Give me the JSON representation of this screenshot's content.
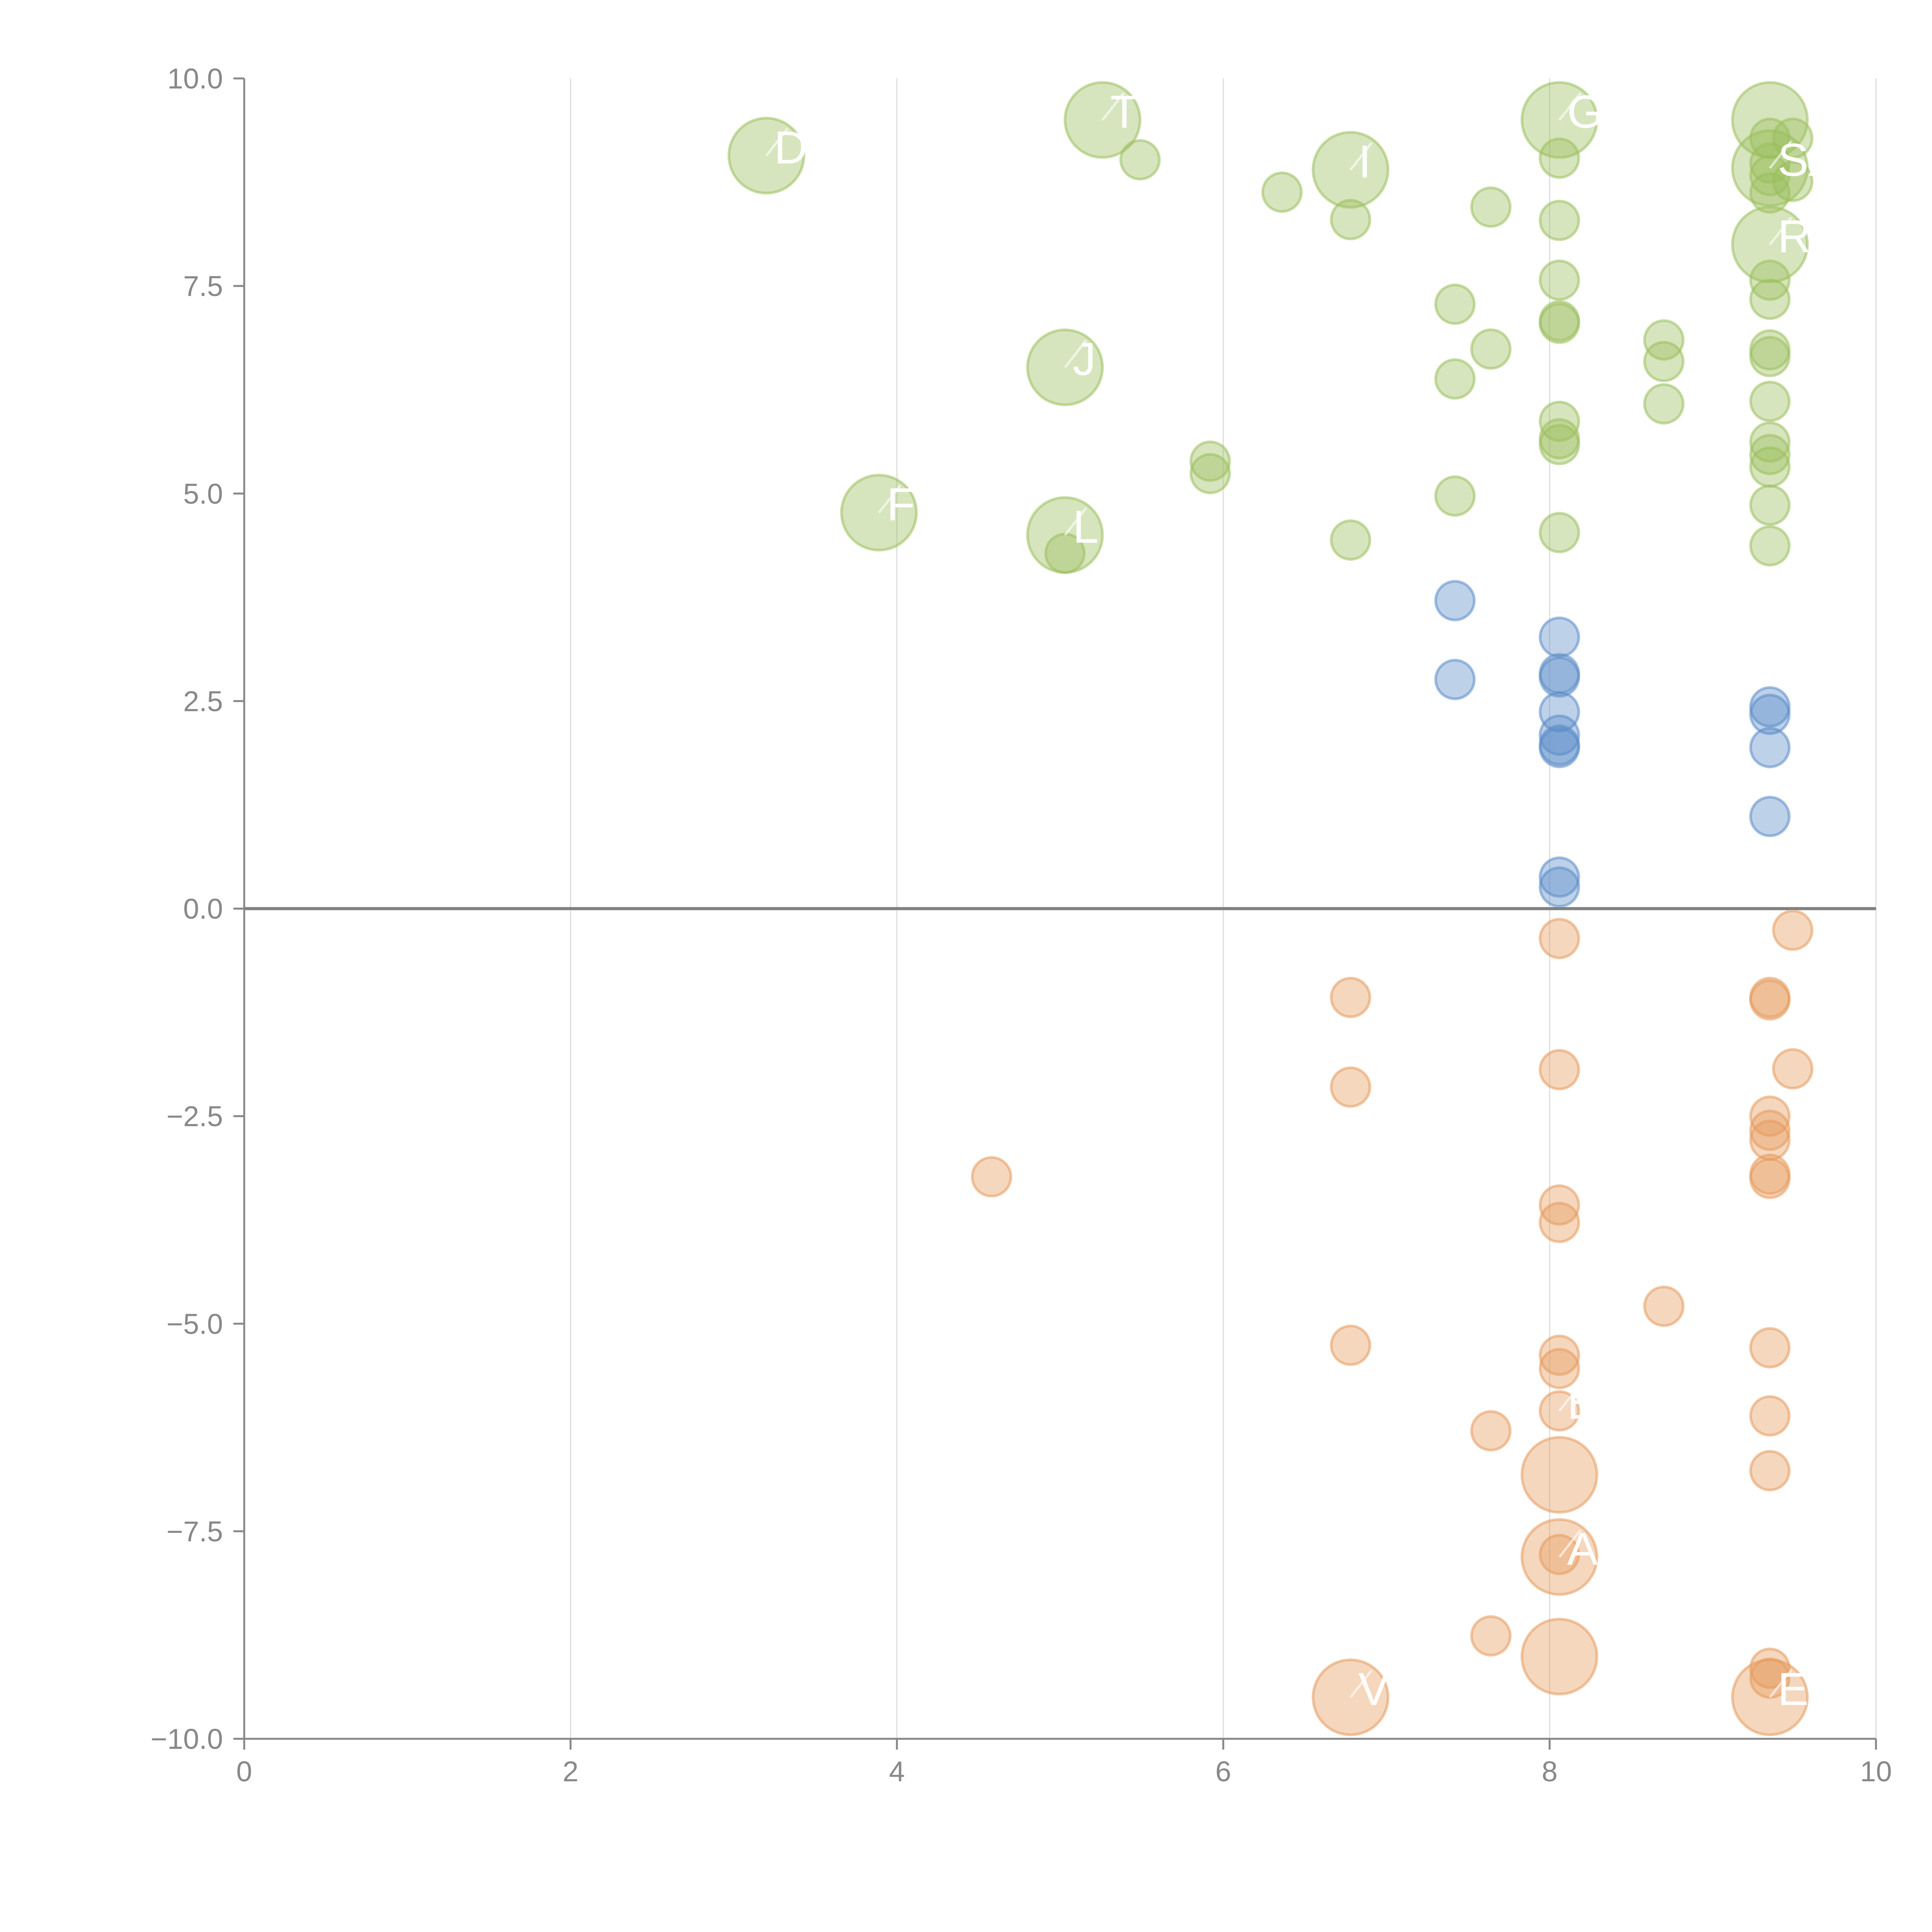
{
  "chart_data": {
    "type": "scatter",
    "title": "",
    "xlabel": "",
    "ylabel": "",
    "xlim": [
      0,
      10
    ],
    "ylim": [
      -10,
      10
    ],
    "grid": true,
    "legend": "none",
    "x_ticks": [
      "0",
      "2",
      "4",
      "6",
      "8",
      "10"
    ],
    "x_tick_values": [
      0,
      2,
      4,
      6,
      8,
      10
    ],
    "y_ticks": [
      "10.0",
      "7.5",
      "5.0",
      "2.5",
      "0.0",
      "−2.5",
      "−5.0",
      "−7.5",
      "−10.0"
    ],
    "y_tick_values": [
      10,
      7.5,
      5,
      2.5,
      0,
      -2.5,
      -5,
      -7.5,
      -10
    ],
    "zero_line": 0,
    "series": [
      {
        "name": "green",
        "color": "#9bbf5c",
        "points": [
          {
            "x": 3.2,
            "y": 9.07,
            "size": "large",
            "label": "D"
          },
          {
            "x": 5.26,
            "y": 9.5,
            "size": "large",
            "label": "T"
          },
          {
            "x": 5.49,
            "y": 9.02,
            "size": "small"
          },
          {
            "x": 6.36,
            "y": 8.63,
            "size": "small"
          },
          {
            "x": 6.78,
            "y": 8.9,
            "size": "large",
            "label": "I"
          },
          {
            "x": 6.78,
            "y": 8.3,
            "size": "small"
          },
          {
            "x": 7.64,
            "y": 8.45,
            "size": "small"
          },
          {
            "x": 8.06,
            "y": 9.5,
            "size": "large",
            "label": "GI"
          },
          {
            "x": 8.06,
            "y": 9.04,
            "size": "small"
          },
          {
            "x": 8.06,
            "y": 8.29,
            "size": "small"
          },
          {
            "x": 8.06,
            "y": 7.57,
            "size": "small"
          },
          {
            "x": 8.06,
            "y": 7.08,
            "size": "small"
          },
          {
            "x": 8.06,
            "y": 7.05,
            "size": "small"
          },
          {
            "x": 9.35,
            "y": 9.5,
            "size": "large"
          },
          {
            "x": 9.35,
            "y": 9.28,
            "size": "small"
          },
          {
            "x": 9.49,
            "y": 9.28,
            "size": "small"
          },
          {
            "x": 9.35,
            "y": 8.92,
            "size": "large",
            "label": "SA"
          },
          {
            "x": 9.35,
            "y": 8.98,
            "size": "small"
          },
          {
            "x": 9.35,
            "y": 8.83,
            "size": "small"
          },
          {
            "x": 9.49,
            "y": 8.76,
            "size": "small"
          },
          {
            "x": 9.35,
            "y": 8.62,
            "size": "small"
          },
          {
            "x": 9.35,
            "y": 8.0,
            "size": "large",
            "label": "R"
          },
          {
            "x": 9.35,
            "y": 7.57,
            "size": "small"
          },
          {
            "x": 9.35,
            "y": 7.34,
            "size": "small"
          },
          {
            "x": 7.42,
            "y": 7.28,
            "size": "small"
          },
          {
            "x": 7.64,
            "y": 6.74,
            "size": "small"
          },
          {
            "x": 7.42,
            "y": 6.38,
            "size": "small"
          },
          {
            "x": 5.03,
            "y": 6.52,
            "size": "large",
            "label": "J"
          },
          {
            "x": 8.7,
            "y": 6.85,
            "size": "small"
          },
          {
            "x": 8.7,
            "y": 6.59,
            "size": "small"
          },
          {
            "x": 8.7,
            "y": 6.08,
            "size": "small"
          },
          {
            "x": 9.35,
            "y": 6.73,
            "size": "small"
          },
          {
            "x": 9.35,
            "y": 6.65,
            "size": "small"
          },
          {
            "x": 9.35,
            "y": 6.11,
            "size": "small"
          },
          {
            "x": 9.35,
            "y": 5.62,
            "size": "small"
          },
          {
            "x": 9.35,
            "y": 5.47,
            "size": "small"
          },
          {
            "x": 9.35,
            "y": 5.32,
            "size": "small"
          },
          {
            "x": 8.06,
            "y": 5.87,
            "size": "small"
          },
          {
            "x": 8.06,
            "y": 5.66,
            "size": "small"
          },
          {
            "x": 8.06,
            "y": 5.59,
            "size": "small"
          },
          {
            "x": 5.92,
            "y": 5.39,
            "size": "small"
          },
          {
            "x": 5.92,
            "y": 5.24,
            "size": "small"
          },
          {
            "x": 7.42,
            "y": 4.97,
            "size": "small"
          },
          {
            "x": 3.89,
            "y": 4.77,
            "size": "large",
            "label": "F"
          },
          {
            "x": 5.03,
            "y": 4.5,
            "size": "large",
            "label": "L"
          },
          {
            "x": 5.03,
            "y": 4.28,
            "size": "small"
          },
          {
            "x": 6.78,
            "y": 4.44,
            "size": "small"
          },
          {
            "x": 8.06,
            "y": 4.53,
            "size": "small"
          },
          {
            "x": 9.35,
            "y": 4.86,
            "size": "small"
          },
          {
            "x": 9.35,
            "y": 4.37,
            "size": "small"
          }
        ]
      },
      {
        "name": "blue",
        "color": "#5b8dc9",
        "points": [
          {
            "x": 7.42,
            "y": 3.71,
            "size": "small"
          },
          {
            "x": 7.42,
            "y": 2.76,
            "size": "small"
          },
          {
            "x": 8.06,
            "y": 3.27,
            "size": "small"
          },
          {
            "x": 8.06,
            "y": 2.83,
            "size": "small"
          },
          {
            "x": 8.06,
            "y": 2.79,
            "size": "small"
          },
          {
            "x": 8.06,
            "y": 2.37,
            "size": "small"
          },
          {
            "x": 8.06,
            "y": 2.09,
            "size": "small"
          },
          {
            "x": 8.06,
            "y": 1.97,
            "size": "small"
          },
          {
            "x": 8.06,
            "y": 1.94,
            "size": "small"
          },
          {
            "x": 9.35,
            "y": 2.43,
            "size": "small"
          },
          {
            "x": 9.35,
            "y": 2.34,
            "size": "small"
          },
          {
            "x": 9.35,
            "y": 1.94,
            "size": "small"
          },
          {
            "x": 9.35,
            "y": 1.11,
            "size": "small"
          },
          {
            "x": 8.06,
            "y": 0.38,
            "size": "small"
          },
          {
            "x": 8.06,
            "y": 0.26,
            "size": "small"
          }
        ]
      },
      {
        "name": "orange",
        "color": "#e59a5c",
        "points": [
          {
            "x": 9.49,
            "y": -0.26,
            "size": "small"
          },
          {
            "x": 8.06,
            "y": -0.36,
            "size": "small"
          },
          {
            "x": 6.78,
            "y": -1.07,
            "size": "small"
          },
          {
            "x": 9.35,
            "y": -1.07,
            "size": "small"
          },
          {
            "x": 9.35,
            "y": -1.1,
            "size": "small"
          },
          {
            "x": 6.78,
            "y": -2.15,
            "size": "small"
          },
          {
            "x": 8.06,
            "y": -1.94,
            "size": "small"
          },
          {
            "x": 9.49,
            "y": -1.93,
            "size": "small"
          },
          {
            "x": 4.58,
            "y": -3.23,
            "size": "small"
          },
          {
            "x": 9.35,
            "y": -2.5,
            "size": "small"
          },
          {
            "x": 9.35,
            "y": -2.67,
            "size": "small"
          },
          {
            "x": 9.35,
            "y": -2.79,
            "size": "small"
          },
          {
            "x": 9.35,
            "y": -3.2,
            "size": "small"
          },
          {
            "x": 9.35,
            "y": -3.25,
            "size": "small"
          },
          {
            "x": 8.06,
            "y": -3.57,
            "size": "small"
          },
          {
            "x": 8.06,
            "y": -3.78,
            "size": "small"
          },
          {
            "x": 8.7,
            "y": -4.79,
            "size": "small"
          },
          {
            "x": 6.78,
            "y": -5.26,
            "size": "small"
          },
          {
            "x": 9.35,
            "y": -5.29,
            "size": "small"
          },
          {
            "x": 8.06,
            "y": -5.38,
            "size": "small"
          },
          {
            "x": 8.06,
            "y": -5.54,
            "size": "small"
          },
          {
            "x": 8.06,
            "y": -6.05,
            "size": "small",
            "label": "E"
          },
          {
            "x": 7.64,
            "y": -6.29,
            "size": "small"
          },
          {
            "x": 9.35,
            "y": -6.11,
            "size": "small"
          },
          {
            "x": 9.35,
            "y": -6.77,
            "size": "small"
          },
          {
            "x": 8.06,
            "y": -6.82,
            "size": "large"
          },
          {
            "x": 8.06,
            "y": -7.81,
            "size": "large",
            "label": "AY"
          },
          {
            "x": 8.06,
            "y": -7.78,
            "size": "small"
          },
          {
            "x": 7.64,
            "y": -8.76,
            "size": "small"
          },
          {
            "x": 8.06,
            "y": -9.01,
            "size": "large"
          },
          {
            "x": 6.78,
            "y": -9.5,
            "size": "large",
            "label": "V"
          },
          {
            "x": 9.35,
            "y": -9.15,
            "size": "small"
          },
          {
            "x": 9.35,
            "y": -9.27,
            "size": "small"
          },
          {
            "x": 9.35,
            "y": -9.5,
            "size": "large",
            "label": "ETM"
          }
        ]
      }
    ]
  }
}
